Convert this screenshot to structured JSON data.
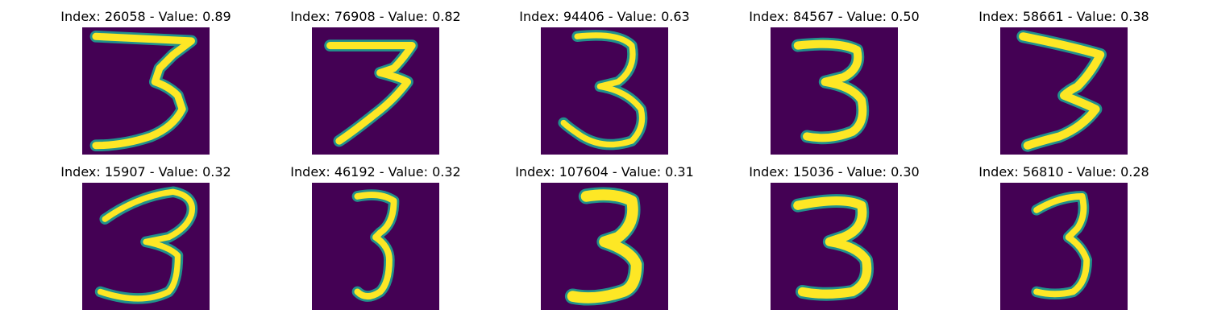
{
  "colors": {
    "background": "#440154",
    "stroke_core": "#fde725",
    "stroke_edge": "#21918c"
  },
  "panels": [
    {
      "title": "Index: 26058 - Value: 0.89",
      "index": 26058,
      "value": 0.89,
      "digit": "3"
    },
    {
      "title": "Index: 76908 - Value: 0.82",
      "index": 76908,
      "value": 0.82,
      "digit": "3"
    },
    {
      "title": "Index: 94406 - Value: 0.63",
      "index": 94406,
      "value": 0.63,
      "digit": "3"
    },
    {
      "title": "Index: 84567 - Value: 0.50",
      "index": 84567,
      "value": 0.5,
      "digit": "3"
    },
    {
      "title": "Index: 58661 - Value: 0.38",
      "index": 58661,
      "value": 0.38,
      "digit": "3"
    },
    {
      "title": "Index: 15907 - Value: 0.32",
      "index": 15907,
      "value": 0.32,
      "digit": "3"
    },
    {
      "title": "Index: 46192 - Value: 0.32",
      "index": 46192,
      "value": 0.32,
      "digit": "3"
    },
    {
      "title": "Index: 107604 - Value: 0.31",
      "index": 107604,
      "value": 0.31,
      "digit": "3"
    },
    {
      "title": "Index: 15036 - Value: 0.30",
      "index": 15036,
      "value": 0.3,
      "digit": "3"
    },
    {
      "title": "Index: 56810 - Value: 0.28",
      "index": 56810,
      "value": 0.28,
      "digit": "3"
    }
  ]
}
